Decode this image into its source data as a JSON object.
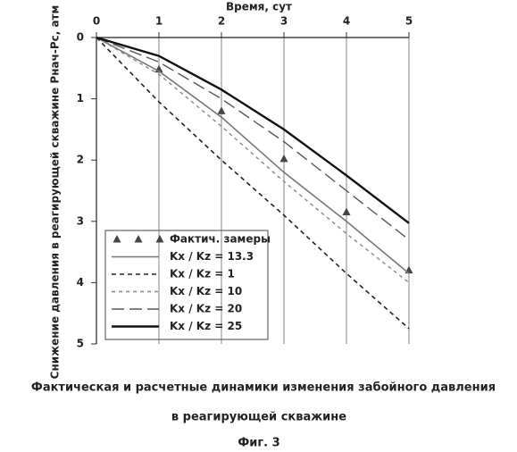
{
  "chart_data": {
    "type": "line",
    "x_label": "Время, сут",
    "y_label": "Снижение давления в реагирующей скважине Pнач-Pс, атм",
    "caption": "Фактическая и расчетные динамики изменения забойного давления",
    "caption2": "в реагирующей скважине",
    "figure_label": "Фиг. 3",
    "x": [
      0,
      1,
      2,
      3,
      4,
      5
    ],
    "xlim": [
      0,
      5
    ],
    "xticks": [
      0,
      1,
      2,
      3,
      4,
      5
    ],
    "ylim": [
      0,
      5
    ],
    "yticks": [
      0,
      1,
      2,
      3,
      4,
      5
    ],
    "y_inverted": true,
    "x_axis_position": "top",
    "grid": "vertical",
    "series": [
      {
        "name": "Фактич. замеры",
        "color": "#444444",
        "style": "markers",
        "values": [
          0,
          0.52,
          1.2,
          1.98,
          2.85,
          3.8
        ]
      },
      {
        "name": "Kx / Kz = 13.3",
        "color": "#777777",
        "style": "solid",
        "values": [
          0,
          0.55,
          1.3,
          2.2,
          3.0,
          3.85
        ]
      },
      {
        "name": "Kx / Kz = 1",
        "color": "#222222",
        "style": "short-dash",
        "values": [
          0,
          1.05,
          2.0,
          2.9,
          3.85,
          4.75
        ]
      },
      {
        "name": "Kx / Kz = 10",
        "color": "#888888",
        "style": "dash",
        "values": [
          0,
          0.6,
          1.45,
          2.35,
          3.2,
          4.0
        ]
      },
      {
        "name": "Kx / Kz = 20",
        "color": "#555555",
        "style": "long-dash",
        "values": [
          0,
          0.4,
          1.0,
          1.7,
          2.5,
          3.3
        ]
      },
      {
        "name": "Kx / Kz = 25",
        "color": "#111111",
        "style": "bold",
        "values": [
          0,
          0.3,
          0.85,
          1.5,
          2.25,
          3.03
        ]
      }
    ]
  }
}
